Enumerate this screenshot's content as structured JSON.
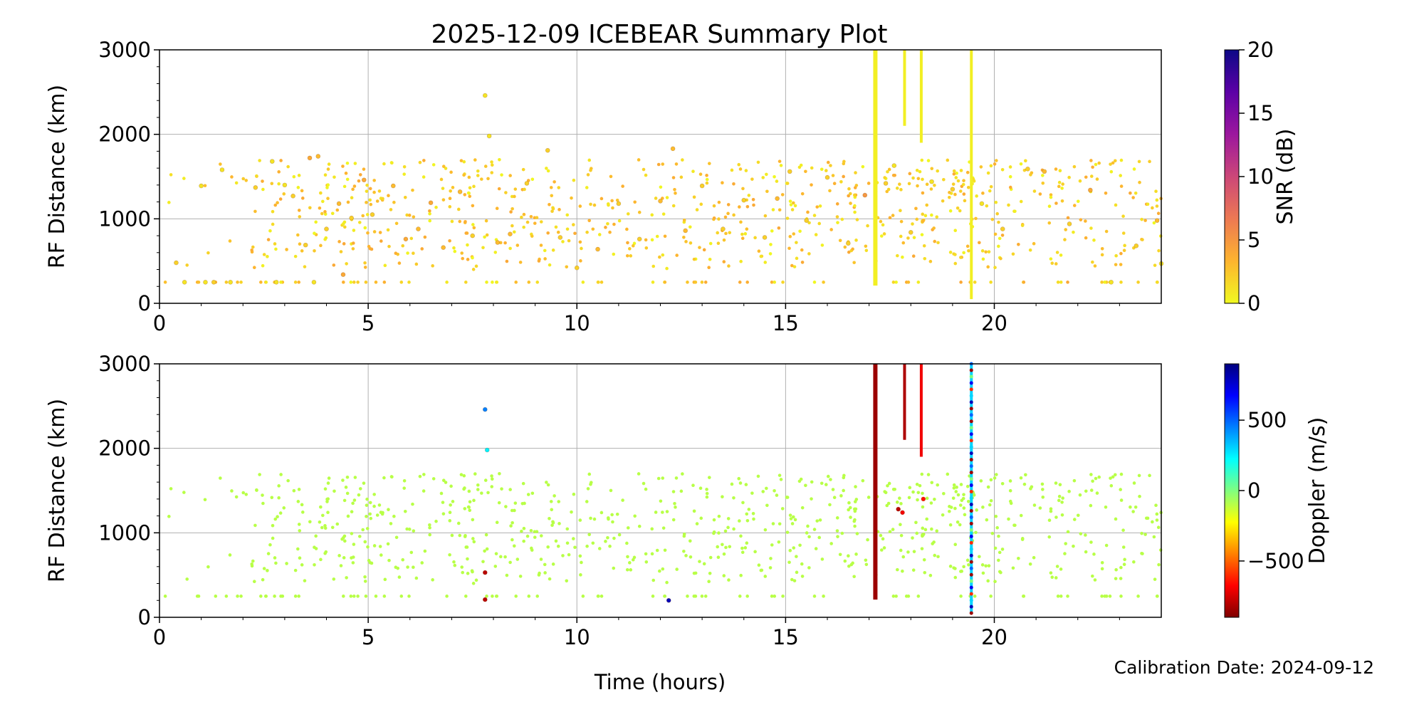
{
  "title": "2025-12-09 ICEBEAR Summary Plot",
  "calibration": "Calibration Date: 2024-09-12",
  "chart_data": [
    {
      "type": "scatter",
      "name": "snr-panel",
      "ylabel": "RF Distance (km)",
      "xlabel": "",
      "xlim": [
        0,
        24
      ],
      "ylim": [
        0,
        3000
      ],
      "xticks": [
        0,
        5,
        10,
        15,
        20
      ],
      "yticks": [
        0,
        1000,
        2000,
        3000
      ],
      "grid": true,
      "colorbar": {
        "label": "SNR (dB)",
        "range": [
          0,
          20
        ],
        "ticks": [
          0,
          5,
          10,
          15,
          20
        ],
        "colormap": "plasma_r",
        "stops": [
          "#f0f921",
          "#fdb42f",
          "#ed7953",
          "#cc4778",
          "#9c179e",
          "#5c01a6",
          "#0d0887"
        ]
      },
      "scatter": [
        {
          "x": 0.4,
          "y": 480,
          "c": 2
        },
        {
          "x": 0.6,
          "y": 250,
          "c": 1
        },
        {
          "x": 1.0,
          "y": 1390,
          "c": 1
        },
        {
          "x": 1.1,
          "y": 250,
          "c": 1
        },
        {
          "x": 1.3,
          "y": 250,
          "c": 2
        },
        {
          "x": 1.5,
          "y": 1580,
          "c": 1
        },
        {
          "x": 1.7,
          "y": 250,
          "c": 1
        },
        {
          "x": 2.3,
          "y": 1370,
          "c": 2
        },
        {
          "x": 2.7,
          "y": 1680,
          "c": 1
        },
        {
          "x": 2.8,
          "y": 250,
          "c": 1
        },
        {
          "x": 3.0,
          "y": 1400,
          "c": 1
        },
        {
          "x": 3.2,
          "y": 1270,
          "c": 2
        },
        {
          "x": 3.5,
          "y": 690,
          "c": 2
        },
        {
          "x": 3.6,
          "y": 1720,
          "c": 4
        },
        {
          "x": 3.8,
          "y": 1740,
          "c": 3
        },
        {
          "x": 3.7,
          "y": 250,
          "c": 1
        },
        {
          "x": 4.0,
          "y": 880,
          "c": 2
        },
        {
          "x": 4.3,
          "y": 1180,
          "c": 3
        },
        {
          "x": 4.4,
          "y": 340,
          "c": 4
        },
        {
          "x": 4.6,
          "y": 1010,
          "c": 2
        },
        {
          "x": 4.9,
          "y": 1460,
          "c": 4
        },
        {
          "x": 5.1,
          "y": 1050,
          "c": 2
        },
        {
          "x": 5.6,
          "y": 1390,
          "c": 3
        },
        {
          "x": 5.9,
          "y": 760,
          "c": 4
        },
        {
          "x": 6.2,
          "y": 880,
          "c": 3
        },
        {
          "x": 6.5,
          "y": 1190,
          "c": 4
        },
        {
          "x": 6.8,
          "y": 660,
          "c": 3
        },
        {
          "x": 7.2,
          "y": 1320,
          "c": 3
        },
        {
          "x": 7.5,
          "y": 800,
          "c": 2
        },
        {
          "x": 7.8,
          "y": 2460,
          "c": 1
        },
        {
          "x": 7.9,
          "y": 1980,
          "c": 1
        },
        {
          "x": 8.1,
          "y": 720,
          "c": 3
        },
        {
          "x": 8.4,
          "y": 820,
          "c": 3
        },
        {
          "x": 8.8,
          "y": 1420,
          "c": 2
        },
        {
          "x": 9.3,
          "y": 1810,
          "c": 2
        },
        {
          "x": 9.6,
          "y": 780,
          "c": 2
        },
        {
          "x": 10.0,
          "y": 420,
          "c": 2
        },
        {
          "x": 10.5,
          "y": 640,
          "c": 3
        },
        {
          "x": 11.0,
          "y": 1180,
          "c": 2
        },
        {
          "x": 11.5,
          "y": 760,
          "c": 2
        },
        {
          "x": 12.0,
          "y": 1210,
          "c": 3
        },
        {
          "x": 12.3,
          "y": 1830,
          "c": 3
        },
        {
          "x": 12.6,
          "y": 860,
          "c": 3
        },
        {
          "x": 13.0,
          "y": 1390,
          "c": 2
        },
        {
          "x": 13.5,
          "y": 880,
          "c": 2
        },
        {
          "x": 14.0,
          "y": 1220,
          "c": 2
        },
        {
          "x": 14.5,
          "y": 780,
          "c": 2
        },
        {
          "x": 14.8,
          "y": 1240,
          "c": 3
        },
        {
          "x": 15.1,
          "y": 1560,
          "c": 2
        },
        {
          "x": 15.5,
          "y": 980,
          "c": 2
        },
        {
          "x": 16.0,
          "y": 1490,
          "c": 2
        },
        {
          "x": 16.5,
          "y": 710,
          "c": 2
        },
        {
          "x": 16.9,
          "y": 1280,
          "c": 5
        },
        {
          "x": 17.4,
          "y": 1420,
          "c": 2
        },
        {
          "x": 17.6,
          "y": 1630,
          "c": 1
        },
        {
          "x": 18.0,
          "y": 840,
          "c": 2
        },
        {
          "x": 18.5,
          "y": 1440,
          "c": 1
        },
        {
          "x": 19.0,
          "y": 1350,
          "c": 2
        },
        {
          "x": 19.7,
          "y": 1180,
          "c": 1
        },
        {
          "x": 20.2,
          "y": 880,
          "c": 2
        },
        {
          "x": 20.8,
          "y": 1590,
          "c": 2
        },
        {
          "x": 21.2,
          "y": 1560,
          "c": 3
        },
        {
          "x": 21.8,
          "y": 940,
          "c": 2
        },
        {
          "x": 22.3,
          "y": 1340,
          "c": 4
        },
        {
          "x": 22.8,
          "y": 250,
          "c": 1
        },
        {
          "x": 23.4,
          "y": 680,
          "c": 2
        },
        {
          "x": 23.9,
          "y": 980,
          "c": 3
        },
        {
          "x": 24.0,
          "y": 470,
          "c": 1
        }
      ],
      "streaks": [
        {
          "x": 17.15,
          "y0": 210,
          "y1": 3000,
          "c": 0.5
        },
        {
          "x": 17.85,
          "y0": 2100,
          "y1": 3000,
          "c": 0.5
        },
        {
          "x": 18.25,
          "y0": 1900,
          "y1": 3000,
          "c": 0.5
        },
        {
          "x": 19.45,
          "y0": 50,
          "y1": 3000,
          "c": 0.5
        }
      ]
    },
    {
      "type": "scatter",
      "name": "doppler-panel",
      "ylabel": "RF Distance (km)",
      "xlabel": "Time (hours)",
      "xlim": [
        0,
        24
      ],
      "ylim": [
        0,
        3000
      ],
      "xticks": [
        0,
        5,
        10,
        15,
        20
      ],
      "yticks": [
        0,
        1000,
        2000,
        3000
      ],
      "grid": true,
      "colorbar": {
        "label": "Doppler (m/s)",
        "range": [
          -900,
          900
        ],
        "ticks": [
          -500,
          0,
          500
        ],
        "tick_labels": [
          "−500",
          "0",
          "500"
        ],
        "colormap": "jet_r",
        "stops": [
          "#7f0000",
          "#ff0000",
          "#ff8000",
          "#ffff00",
          "#80ff80",
          "#00ffff",
          "#0080ff",
          "#0000ff",
          "#00007f"
        ]
      },
      "scatter": [
        {
          "x": 7.8,
          "y": 2460,
          "c": 450
        },
        {
          "x": 7.85,
          "y": 1980,
          "c": 250
        },
        {
          "x": 7.8,
          "y": 530,
          "c": -800
        },
        {
          "x": 7.8,
          "y": 210,
          "c": -800
        },
        {
          "x": 12.2,
          "y": 200,
          "c": 800
        },
        {
          "x": 17.7,
          "y": 1280,
          "c": -800
        },
        {
          "x": 17.8,
          "y": 1240,
          "c": -700
        },
        {
          "x": 18.3,
          "y": 1400,
          "c": -650
        }
      ],
      "background_doppler": -100,
      "streaks": [
        {
          "x": 17.15,
          "y0": 210,
          "y1": 3000,
          "c": -850
        },
        {
          "x": 17.85,
          "y0": 2100,
          "y1": 3000,
          "c": -820
        },
        {
          "x": 18.25,
          "y0": 1900,
          "y1": 3000,
          "c": -700
        },
        {
          "x": 19.45,
          "y0": 50,
          "y1": 3000,
          "c": 300
        }
      ]
    }
  ]
}
